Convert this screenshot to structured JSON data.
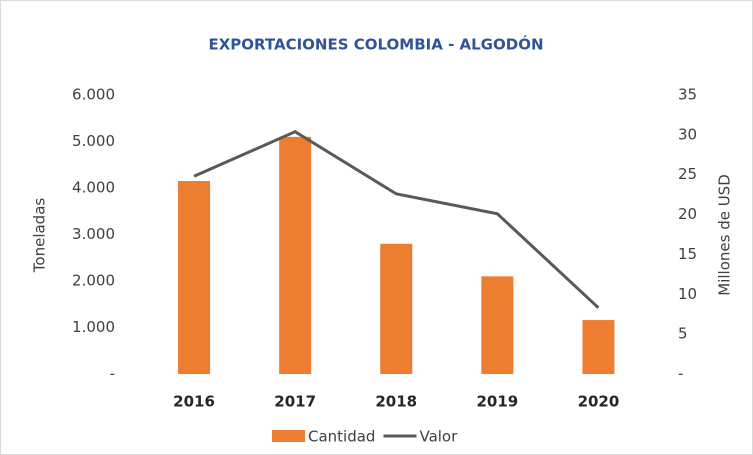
{
  "chart_data": {
    "type": "bar",
    "title": "EXPORTACIONES COLOMBIA - ALGODÓN",
    "ylabel": "Toneladas",
    "y2label": "Millones de USD",
    "categories": [
      "2016",
      "2017",
      "2018",
      "2019",
      "2020"
    ],
    "series": [
      {
        "name": "Cantidad",
        "type": "bar",
        "color": "#ed7d31",
        "values": [
          4150,
          5100,
          2800,
          2100,
          1160
        ]
      },
      {
        "name": "Valor",
        "type": "line",
        "axis": "y2",
        "color": "#595959",
        "values": [
          24.8,
          30.4,
          22.6,
          20.1,
          8.3
        ]
      }
    ],
    "ylim": [
      0,
      6000
    ],
    "yticks": [
      {
        "value": 0,
        "label": "-"
      },
      {
        "value": 1000,
        "label": "1.000"
      },
      {
        "value": 2000,
        "label": "2.000"
      },
      {
        "value": 3000,
        "label": "3.000"
      },
      {
        "value": 4000,
        "label": "4.000"
      },
      {
        "value": 5000,
        "label": "5.000"
      },
      {
        "value": 6000,
        "label": "6.000"
      }
    ],
    "y2lim": [
      0,
      35
    ],
    "y2ticks": [
      {
        "value": 0,
        "label": "-"
      },
      5,
      10,
      15,
      20,
      25,
      30,
      35
    ],
    "legend": "bottom"
  }
}
